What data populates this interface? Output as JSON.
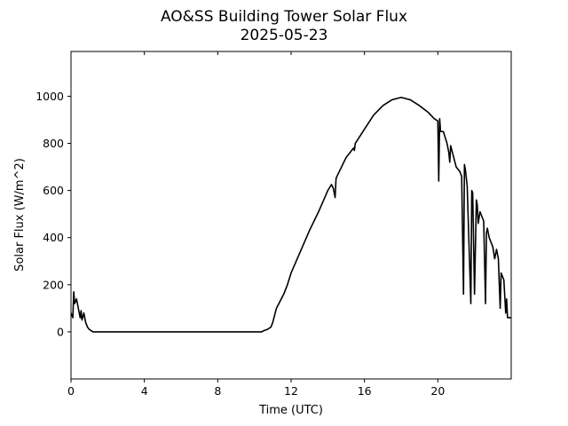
{
  "chart_data": {
    "type": "line",
    "title": "AO&SS Building Tower Solar Flux",
    "subtitle": "2025-05-23",
    "xlabel": "Time (UTC)",
    "ylabel": "Solar Flux (W/m^2)",
    "xlim": [
      0,
      24
    ],
    "ylim": [
      -200,
      1190
    ],
    "xticks": [
      0,
      4,
      8,
      12,
      16,
      20
    ],
    "yticks": [
      0,
      200,
      400,
      600,
      800,
      1000
    ],
    "grid": false,
    "legend": "none",
    "line_color": "#000000",
    "series": [
      {
        "x": [
          0,
          0.1,
          0.15,
          0.2,
          0.3,
          0.4,
          0.5,
          0.55,
          0.6,
          0.7,
          0.8,
          0.9,
          1.0,
          1.1,
          1.2,
          1.3,
          1.5,
          2,
          4,
          6,
          8,
          10,
          10.4,
          10.5,
          10.7,
          10.9,
          11.0,
          11.2,
          11.4,
          11.6,
          11.8,
          12,
          12.5,
          13,
          13.5,
          14,
          14.2,
          14.3,
          14.4,
          14.45,
          14.5,
          15,
          15.4,
          15.45,
          15.5,
          16,
          16.5,
          17,
          17.5,
          18,
          18.5,
          19,
          19.5,
          19.8,
          20,
          20.05,
          20.1,
          20.15,
          20.3,
          20.5,
          20.6,
          20.65,
          20.7,
          20.8,
          21,
          21.2,
          21.3,
          21.4,
          21.45,
          21.5,
          21.6,
          21.8,
          21.85,
          21.9,
          22,
          22.1,
          22.15,
          22.2,
          22.3,
          22.5,
          22.6,
          22.65,
          22.7,
          22.8,
          23,
          23.1,
          23.2,
          23.3,
          23.4,
          23.45,
          23.5,
          23.6,
          23.7,
          23.75,
          23.8,
          24
        ],
        "y": [
          80,
          60,
          170,
          120,
          140,
          100,
          60,
          90,
          50,
          80,
          40,
          20,
          10,
          5,
          0,
          0,
          0,
          0,
          0,
          0,
          0,
          0,
          0,
          5,
          10,
          20,
          40,
          100,
          130,
          160,
          200,
          250,
          340,
          430,
          510,
          600,
          625,
          610,
          570,
          650,
          660,
          740,
          780,
          770,
          800,
          860,
          920,
          960,
          985,
          995,
          985,
          960,
          930,
          905,
          895,
          640,
          905,
          850,
          850,
          800,
          760,
          720,
          790,
          760,
          700,
          680,
          660,
          160,
          710,
          690,
          620,
          120,
          600,
          590,
          160,
          560,
          540,
          460,
          510,
          470,
          120,
          420,
          440,
          400,
          360,
          310,
          350,
          310,
          100,
          250,
          240,
          220,
          80,
          140,
          60,
          60
        ]
      }
    ]
  }
}
